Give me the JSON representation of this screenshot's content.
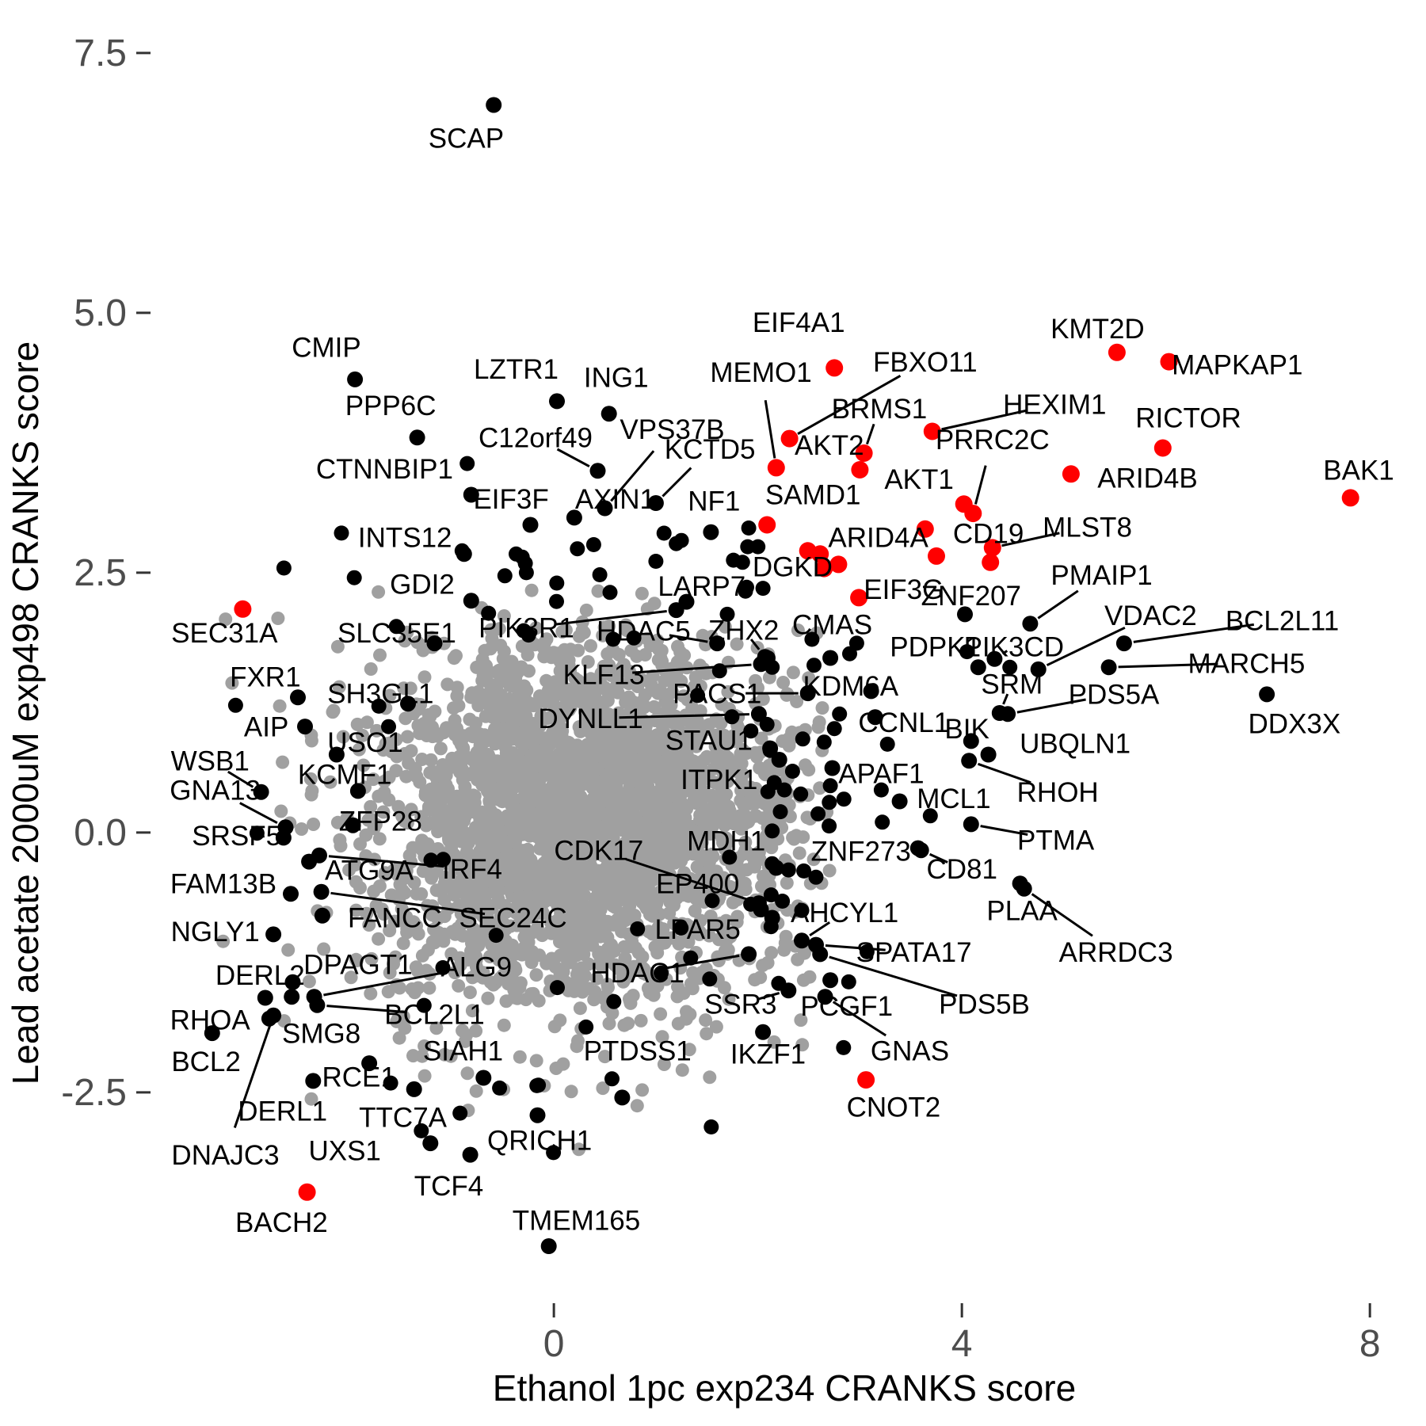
{
  "figure": {
    "x_axis_title": "Ethanol 1pc exp234 CRANKS score",
    "y_axis_title": "Lead acetate 2000uM exp498 CRANKS score"
  },
  "chart_data": {
    "type": "scatter",
    "title": "",
    "xlabel": "Ethanol 1pc exp234 CRANKS score",
    "ylabel": "Lead acetate 2000uM exp498 CRANKS score",
    "grid": false,
    "legend": null,
    "x_domain": [
      -5.43,
      8.55
    ],
    "y_domain": [
      -5.71,
      8.01
    ],
    "x_ticks": [
      {
        "v": 0,
        "label": "0"
      },
      {
        "v": 4,
        "label": "4"
      },
      {
        "v": 8,
        "label": "8"
      }
    ],
    "y_ticks": [
      {
        "v": 7.5,
        "label": "7.5"
      },
      {
        "v": 5.0,
        "label": "5.0"
      },
      {
        "v": 2.5,
        "label": "2.5"
      },
      {
        "v": 0.0,
        "label": "0.0"
      },
      {
        "v": -2.5,
        "label": "-2.5"
      }
    ],
    "colors": {
      "background_point": "#A0A0A0",
      "point": "#000000",
      "highlight": "#FF0000",
      "tick_text": "#4D4D4D",
      "tick_mark": "#333333",
      "axis_title": "#000000",
      "label_text": "#000000"
    },
    "sizes": {
      "bg_r": 8.5,
      "black_r": 10,
      "red_r": 11,
      "extra_r": 9.5,
      "label_font": 35,
      "tick_font": 48,
      "title_font": 46,
      "leader_w": 3
    },
    "genes": [
      [
        "SCAP",
        -0.59,
        7.0,
        -0.86,
        6.68,
        0,
        0
      ],
      [
        "CMIP",
        -1.95,
        4.36,
        -2.23,
        4.67,
        0,
        0
      ],
      [
        "PPP6C",
        -1.34,
        3.8,
        -1.6,
        4.11,
        0,
        0
      ],
      [
        "CTNNBIP1",
        -0.81,
        3.25,
        -1.66,
        3.5,
        0,
        0
      ],
      [
        "LZTR1",
        0.03,
        4.15,
        -0.37,
        4.46,
        0,
        0
      ],
      [
        "ING1",
        0.54,
        4.03,
        0.61,
        4.38,
        0,
        0
      ],
      [
        "VPS37B",
        0.5,
        3.12,
        1.16,
        3.88,
        0,
        1
      ],
      [
        "C12orf49",
        0.43,
        3.48,
        -0.18,
        3.8,
        0,
        1
      ],
      [
        "KCTD5",
        1.0,
        3.17,
        1.53,
        3.69,
        0,
        1
      ],
      [
        "EIF3F",
        -0.23,
        2.96,
        -0.42,
        3.21,
        0,
        0
      ],
      [
        "AXIN1",
        0.2,
        3.03,
        0.6,
        3.21,
        0,
        0
      ],
      [
        "NF1",
        1.54,
        2.89,
        1.57,
        3.19,
        0,
        0
      ],
      [
        "INTS12",
        -0.88,
        2.68,
        -1.46,
        2.84,
        0,
        0
      ],
      [
        "GDI2",
        -0.81,
        2.23,
        -1.29,
        2.39,
        0,
        0
      ],
      [
        "SEC31A",
        -3.05,
        2.15,
        -3.23,
        1.92,
        1,
        0
      ],
      [
        "SLC35E1",
        -1.17,
        1.82,
        -1.54,
        1.92,
        0,
        0
      ],
      [
        "PIK3R1",
        1.2,
        2.14,
        -0.27,
        1.97,
        0,
        1
      ],
      [
        "LARP7",
        1.3,
        2.22,
        1.45,
        2.37,
        0,
        0
      ],
      [
        "HDAC5",
        1.6,
        1.82,
        0.88,
        1.94,
        0,
        1
      ],
      [
        "ZHX2",
        2.07,
        1.69,
        1.86,
        1.95,
        0,
        1
      ],
      [
        "KLF13",
        2.03,
        1.62,
        0.49,
        1.52,
        0,
        1
      ],
      [
        "PACS1",
        2.49,
        1.34,
        1.6,
        1.34,
        0,
        1
      ],
      [
        "DYNLL1",
        2.01,
        1.14,
        0.36,
        1.1,
        0,
        1
      ],
      [
        "STAU1",
        2.12,
        0.81,
        1.52,
        0.89,
        0,
        0
      ],
      [
        "ITPK1",
        2.21,
        0.7,
        1.62,
        0.51,
        0,
        0
      ],
      [
        "MDH1",
        2.18,
        -0.34,
        1.69,
        -0.08,
        0,
        0
      ],
      [
        "CDK17",
        2.01,
        -0.68,
        0.44,
        -0.17,
        0,
        1
      ],
      [
        "EP400",
        2.03,
        -0.74,
        1.41,
        -0.49,
        0,
        0
      ],
      [
        "LPAR5",
        2.14,
        -0.82,
        1.41,
        -0.93,
        0,
        0
      ],
      [
        "HDAC1",
        1.91,
        -1.17,
        0.82,
        -1.35,
        0,
        1
      ],
      [
        "SSR3",
        2.3,
        -1.52,
        1.83,
        -1.65,
        0,
        1
      ],
      [
        "PTDSS1",
        0.67,
        -2.55,
        0.82,
        -2.1,
        0,
        0
      ],
      [
        "IKZF1",
        2.05,
        -1.92,
        2.1,
        -2.13,
        0,
        0
      ],
      [
        "GNAS",
        2.66,
        -1.58,
        3.49,
        -2.1,
        0,
        1
      ],
      [
        "PCGF1",
        2.71,
        -1.42,
        2.87,
        -1.67,
        0,
        0
      ],
      [
        "PDS5B",
        2.61,
        -1.17,
        4.22,
        -1.65,
        0,
        1
      ],
      [
        "SPATA17",
        2.57,
        -1.08,
        3.53,
        -1.15,
        0,
        1
      ],
      [
        "AHCYL1",
        2.43,
        -1.04,
        2.85,
        -0.77,
        0,
        1
      ],
      [
        "ZNF273",
        3.57,
        -0.15,
        3.01,
        -0.18,
        0,
        0
      ],
      [
        "CD81",
        3.6,
        -0.17,
        4.0,
        -0.35,
        0,
        1
      ],
      [
        "PLAA",
        4.57,
        -0.49,
        4.59,
        -0.75,
        0,
        0
      ],
      [
        "ARRDC3",
        4.61,
        -0.54,
        5.51,
        -1.15,
        0,
        1
      ],
      [
        "CNOT2",
        3.06,
        -2.38,
        3.33,
        -2.64,
        1,
        0
      ],
      [
        "TMEM165",
        -0.05,
        -3.98,
        0.22,
        -3.73,
        0,
        0
      ],
      [
        "QRICH1",
        -0.16,
        -2.72,
        -0.14,
        -2.96,
        0,
        0
      ],
      [
        "TCF4",
        -0.82,
        -3.1,
        -1.03,
        -3.4,
        0,
        0
      ],
      [
        "UXS1",
        -1.21,
        -2.99,
        -2.05,
        -3.06,
        0,
        0
      ],
      [
        "BACH2",
        -2.42,
        -3.46,
        -2.67,
        -3.75,
        1,
        0
      ],
      [
        "DNAJC3",
        -2.75,
        -1.76,
        -3.22,
        -3.1,
        0,
        1
      ],
      [
        "DERL1",
        -2.36,
        -2.39,
        -2.66,
        -2.68,
        0,
        0
      ],
      [
        "TTC7A",
        -1.37,
        -2.47,
        -1.48,
        -2.74,
        0,
        0
      ],
      [
        "RCE1",
        -1.81,
        -2.22,
        -1.91,
        -2.35,
        0,
        0
      ],
      [
        "SIAH1",
        -0.69,
        -2.36,
        -0.89,
        -2.1,
        0,
        0
      ],
      [
        "SMG8",
        -2.57,
        -1.58,
        -2.28,
        -1.93,
        0,
        0
      ],
      [
        "BCL2",
        -3.35,
        -1.93,
        -3.41,
        -2.2,
        0,
        0
      ],
      [
        "RHOA",
        -2.79,
        -1.79,
        -3.37,
        -1.8,
        0,
        0
      ],
      [
        "BCL2L1",
        -2.32,
        -1.66,
        -1.17,
        -1.75,
        0,
        1
      ],
      [
        "ALG9",
        -2.35,
        -1.58,
        -0.76,
        -1.29,
        0,
        1
      ],
      [
        "DPAGT1",
        -2.56,
        -1.44,
        -1.92,
        -1.27,
        0,
        0
      ],
      [
        "DERL2",
        -2.83,
        -1.59,
        -2.88,
        -1.37,
        0,
        0
      ],
      [
        "NGLY1",
        -2.75,
        -0.98,
        -3.32,
        -0.95,
        0,
        0
      ],
      [
        "FANCC",
        -2.27,
        -0.8,
        -1.56,
        -0.82,
        0,
        0
      ],
      [
        "SEC24C",
        -2.28,
        -0.57,
        -0.4,
        -0.82,
        0,
        1
      ],
      [
        "FAM13B",
        -2.58,
        -0.59,
        -3.24,
        -0.49,
        0,
        0
      ],
      [
        "ATG9A",
        -2.4,
        -0.28,
        -1.81,
        -0.36,
        0,
        0
      ],
      [
        "IRF4",
        -2.3,
        -0.22,
        -0.8,
        -0.35,
        0,
        1
      ],
      [
        "SRSF5",
        -2.65,
        -0.05,
        -3.11,
        -0.03,
        0,
        0
      ],
      [
        "GNA13",
        -2.63,
        0.05,
        -3.32,
        0.41,
        0,
        1
      ],
      [
        "ZFP28",
        -1.97,
        0.07,
        -1.7,
        0.11,
        0,
        0
      ],
      [
        "WSB1",
        -2.87,
        0.39,
        -3.37,
        0.69,
        0,
        1
      ],
      [
        "KCMF1",
        -1.92,
        0.4,
        -2.05,
        0.56,
        0,
        0
      ],
      [
        "AIP",
        -2.44,
        1.02,
        -2.82,
        1.02,
        0,
        0
      ],
      [
        "USO1",
        -2.13,
        0.75,
        -1.85,
        0.87,
        0,
        0
      ],
      [
        "FXR1",
        -2.51,
        1.3,
        -2.83,
        1.5,
        0,
        0
      ],
      [
        "SH3GL1",
        -1.43,
        1.24,
        -1.7,
        1.34,
        0,
        0
      ],
      [
        "CMAS",
        2.71,
        1.68,
        2.73,
        2.0,
        0,
        0
      ],
      [
        "PDPK1",
        4.16,
        1.59,
        3.74,
        1.79,
        0,
        0
      ],
      [
        "PIK3CD",
        4.32,
        1.67,
        4.51,
        1.79,
        0,
        1
      ],
      [
        "KDM6A",
        3.11,
        1.36,
        2.91,
        1.41,
        0,
        0
      ],
      [
        "SRM",
        4.37,
        1.15,
        4.49,
        1.43,
        0,
        1
      ],
      [
        "PDS5A",
        4.45,
        1.14,
        5.49,
        1.33,
        0,
        1
      ],
      [
        "VDAC2",
        4.75,
        1.57,
        5.85,
        2.09,
        0,
        1
      ],
      [
        "BCL2L11",
        5.59,
        1.82,
        7.14,
        2.04,
        0,
        1
      ],
      [
        "MARCH5",
        5.44,
        1.59,
        6.79,
        1.63,
        0,
        1
      ],
      [
        "DDX3X",
        6.99,
        1.33,
        7.26,
        1.05,
        0,
        0
      ],
      [
        "UBQLN1",
        4.26,
        0.75,
        5.11,
        0.86,
        0,
        0
      ],
      [
        "BIK",
        4.09,
        0.88,
        4.05,
        1.0,
        0,
        0
      ],
      [
        "CCNL1",
        3.15,
        1.11,
        3.43,
        1.06,
        0,
        0
      ],
      [
        "APAF1",
        2.73,
        0.62,
        3.21,
        0.57,
        0,
        0
      ],
      [
        "RHOH",
        4.07,
        0.69,
        4.94,
        0.39,
        0,
        1
      ],
      [
        "MCL1",
        3.39,
        0.3,
        3.92,
        0.33,
        0,
        0
      ],
      [
        "PTMA",
        4.09,
        0.08,
        4.92,
        -0.07,
        0,
        1
      ],
      [
        "ZNF207",
        4.03,
        2.1,
        4.09,
        2.28,
        0,
        0
      ],
      [
        "EIF3G",
        2.99,
        2.26,
        3.43,
        2.34,
        1,
        0
      ],
      [
        "DGKD",
        2.79,
        2.58,
        2.34,
        2.56,
        1,
        0
      ],
      [
        "ARID4A",
        2.61,
        2.68,
        3.18,
        2.84,
        1,
        0
      ],
      [
        "CD19",
        4.28,
        2.6,
        4.26,
        2.88,
        1,
        1
      ],
      [
        "MLST8",
        4.3,
        2.74,
        5.23,
        2.94,
        1,
        1
      ],
      [
        "PMAIP1",
        4.67,
        2.01,
        5.37,
        2.48,
        0,
        1
      ],
      [
        "SAMD1",
        2.09,
        2.96,
        2.54,
        3.25,
        1,
        0
      ],
      [
        "MEMO1",
        2.18,
        3.51,
        2.03,
        4.43,
        1,
        1
      ],
      [
        "EIF4A1",
        2.75,
        4.47,
        2.4,
        4.91,
        1,
        0
      ],
      [
        "FBXO11",
        2.31,
        3.79,
        3.64,
        4.53,
        1,
        1
      ],
      [
        "BRMS1",
        3.04,
        3.65,
        3.19,
        4.08,
        1,
        1
      ],
      [
        "AKT2",
        3.0,
        3.49,
        2.7,
        3.73,
        1,
        0
      ],
      [
        "AKT1",
        4.02,
        3.16,
        3.58,
        3.4,
        1,
        0
      ],
      [
        "PRRC2C",
        4.11,
        3.07,
        4.3,
        3.78,
        1,
        1
      ],
      [
        "HEXIM1",
        3.71,
        3.86,
        4.91,
        4.12,
        1,
        1
      ],
      [
        "KMT2D",
        5.52,
        4.62,
        5.33,
        4.85,
        1,
        0
      ],
      [
        "MAPKAP1",
        6.03,
        4.53,
        6.7,
        4.5,
        1,
        0
      ],
      [
        "RICTOR",
        5.97,
        3.7,
        6.22,
        3.99,
        1,
        0
      ],
      [
        "ARID4B",
        5.07,
        3.45,
        5.82,
        3.41,
        1,
        0
      ],
      [
        "BAK1",
        7.81,
        3.22,
        7.89,
        3.49,
        1,
        0
      ]
    ],
    "extra_red": [
      [
        2.49,
        2.71
      ],
      [
        3.64,
        2.92
      ],
      [
        3.75,
        2.66
      ],
      [
        2.65,
        2.54
      ]
    ],
    "extra_black": [
      [
        -0.9,
        2.71
      ],
      [
        -0.37,
        2.68
      ],
      [
        -0.28,
        2.59
      ],
      [
        0.23,
        2.73
      ],
      [
        0.39,
        2.77
      ],
      [
        0.45,
        2.48
      ],
      [
        0.55,
        2.31
      ],
      [
        1.0,
        2.61
      ],
      [
        1.2,
        2.78
      ],
      [
        1.76,
        2.62
      ],
      [
        1.9,
        2.75
      ],
      [
        1.89,
        2.36
      ],
      [
        2.05,
        2.35
      ],
      [
        -0.85,
        3.55
      ],
      [
        1.08,
        2.88
      ],
      [
        1.25,
        2.81
      ],
      [
        1.91,
        2.93
      ],
      [
        1.85,
        2.6
      ],
      [
        2.0,
        2.75
      ],
      [
        -0.48,
        2.47
      ],
      [
        -0.31,
        2.65
      ],
      [
        -0.27,
        2.5
      ],
      [
        -0.64,
        2.11
      ],
      [
        2.14,
        -0.3
      ],
      [
        2.3,
        -0.36
      ],
      [
        2.45,
        -0.37
      ],
      [
        2.57,
        -0.43
      ],
      [
        2.13,
        -0.6
      ],
      [
        2.24,
        -0.66
      ],
      [
        1.93,
        -0.69
      ],
      [
        2.43,
        -0.75
      ],
      [
        4.05,
        1.74
      ],
      [
        4.47,
        1.59
      ],
      [
        2.9,
        1.72
      ],
      [
        2.55,
        1.61
      ],
      [
        2.1,
        1.68
      ],
      [
        2.14,
        1.59
      ],
      [
        2.8,
        1.14
      ],
      [
        2.75,
        1.0
      ],
      [
        2.65,
        0.87
      ],
      [
        2.44,
        0.9
      ],
      [
        2.12,
        0.79
      ],
      [
        2.34,
        0.59
      ],
      [
        2.16,
        0.48
      ],
      [
        2.26,
        0.41
      ],
      [
        2.42,
        0.37
      ],
      [
        2.71,
        0.45
      ],
      [
        2.59,
        0.18
      ],
      [
        2.22,
        0.2
      ],
      [
        2.7,
        0.29
      ],
      [
        3.22,
        0.1
      ],
      [
        3.21,
        0.41
      ],
      [
        0.57,
        -2.37
      ],
      [
        -0.92,
        -2.7
      ],
      [
        -1.3,
        -2.87
      ],
      [
        -1.6,
        -2.41
      ],
      [
        2.84,
        -2.07
      ],
      [
        3.27,
        0.85
      ],
      [
        2.09,
        1.04
      ],
      [
        1.7,
        2.1
      ]
    ],
    "background": {
      "seed": 42,
      "gray_clusters": [
        {
          "n": 2100,
          "cx": 0.32,
          "cy": 0.3,
          "sdx": 0.98,
          "sdy": 0.75
        },
        {
          "n": 520,
          "cx": 0.05,
          "cy": -0.75,
          "sdx": 1.05,
          "sdy": 0.72
        },
        {
          "n": 280,
          "cx": 0.25,
          "cy": 0.25,
          "sdx": 1.4,
          "sdy": 1.05
        }
      ],
      "gray_clamp": {
        "x": [
          -3.45,
          2.72
        ],
        "y": [
          -3.35,
          2.38
        ]
      },
      "black_ring": {
        "n": 70,
        "cx": 0.5,
        "cy": 0.2,
        "sdx": 1.9,
        "sdy": 1.5,
        "inner": 1.5,
        "x": [
          -3.5,
          3.7
        ],
        "y": [
          -3.4,
          3.3
        ]
      }
    }
  }
}
